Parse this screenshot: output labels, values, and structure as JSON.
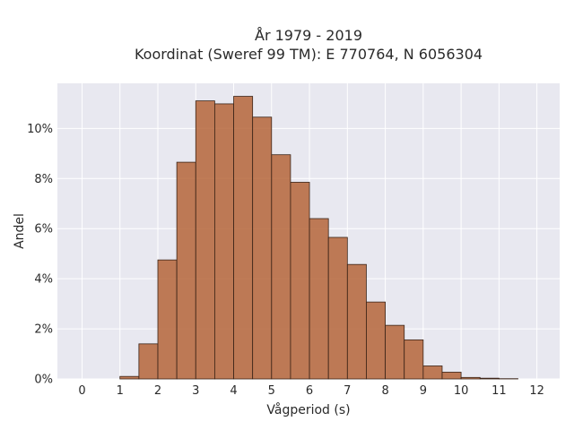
{
  "chart_data": {
    "type": "bar",
    "title_lines": [
      "År 1979 - 2019",
      "Koordinat (Sweref 99 TM): E 770764, N 6056304"
    ],
    "xlabel": "Vågperiod (s)",
    "ylabel": "Andel",
    "x_ticks": [
      "0",
      "1",
      "2",
      "3",
      "4",
      "5",
      "6",
      "7",
      "8",
      "9",
      "10",
      "11",
      "12"
    ],
    "y_ticks": [
      "0%",
      "2%",
      "4%",
      "6%",
      "8%",
      "10%"
    ],
    "xlim": [
      -0.65,
      12.6
    ],
    "ylim": [
      0,
      11.8
    ],
    "bin_width": 0.5,
    "bins": [
      {
        "x0": 1.0,
        "value": 0.1
      },
      {
        "x0": 1.5,
        "value": 1.4
      },
      {
        "x0": 2.0,
        "value": 4.75
      },
      {
        "x0": 2.5,
        "value": 8.65
      },
      {
        "x0": 3.0,
        "value": 11.1
      },
      {
        "x0": 3.5,
        "value": 10.98
      },
      {
        "x0": 4.0,
        "value": 11.28
      },
      {
        "x0": 4.5,
        "value": 10.45
      },
      {
        "x0": 5.0,
        "value": 8.95
      },
      {
        "x0": 5.5,
        "value": 7.85
      },
      {
        "x0": 6.0,
        "value": 6.4
      },
      {
        "x0": 6.5,
        "value": 5.65
      },
      {
        "x0": 7.0,
        "value": 4.57
      },
      {
        "x0": 7.5,
        "value": 3.07
      },
      {
        "x0": 8.0,
        "value": 2.14
      },
      {
        "x0": 8.5,
        "value": 1.56
      },
      {
        "x0": 9.0,
        "value": 0.52
      },
      {
        "x0": 9.5,
        "value": 0.27
      },
      {
        "x0": 10.0,
        "value": 0.06
      },
      {
        "x0": 10.5,
        "value": 0.03
      },
      {
        "x0": 11.0,
        "value": 0.01
      }
    ],
    "colors": {
      "bar": "#b5653a",
      "bar_edge": "#3a2418",
      "plot_bg": "#e8e8f0",
      "grid": "#ffffff"
    },
    "grid": true
  }
}
